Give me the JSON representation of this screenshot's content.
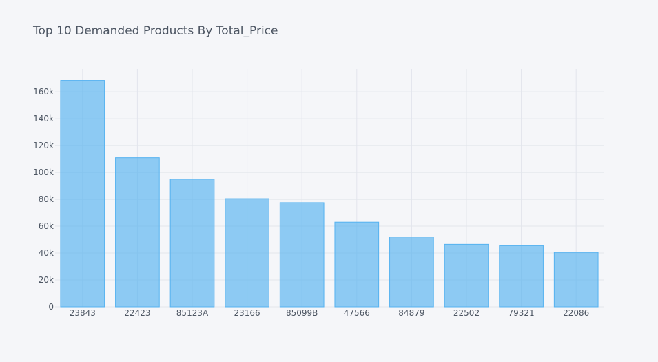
{
  "chart_data": {
    "type": "bar",
    "title": "Top 10 Demanded Products By Total_Price",
    "xlabel": "",
    "ylabel": "",
    "categories": [
      "23843",
      "22423",
      "85123A",
      "23166",
      "85099B",
      "47566",
      "84879",
      "22502",
      "79321",
      "22086"
    ],
    "values": [
      168500,
      111000,
      95000,
      80500,
      77500,
      63000,
      52000,
      46500,
      45500,
      40500
    ],
    "ylim": [
      0,
      177000
    ],
    "yticks": [
      0,
      20000,
      40000,
      60000,
      80000,
      100000,
      120000,
      140000,
      160000
    ],
    "ytick_labels": [
      "0",
      "20k",
      "40k",
      "60k",
      "80k",
      "100k",
      "120k",
      "140k",
      "160k"
    ],
    "grid": true,
    "bar_color": "#55b2f0",
    "background": "#f5f6f9"
  }
}
